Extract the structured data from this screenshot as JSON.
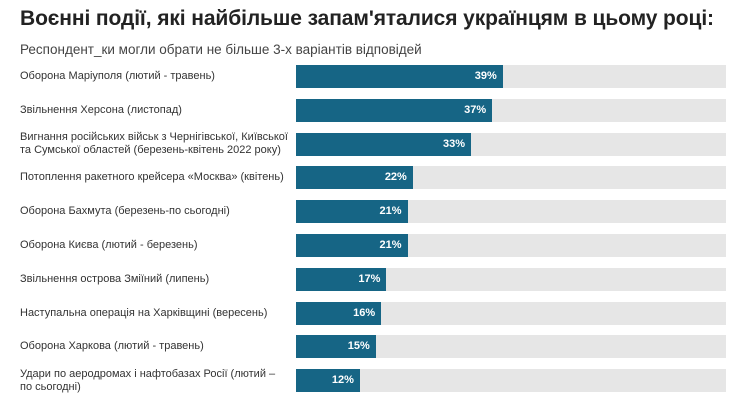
{
  "chart_data": {
    "type": "bar",
    "orientation": "horizontal",
    "title": "Воєнні події, які найбільше запам'яталися українцям в цьому році:",
    "subtitle": "Респондент_ки могли обрати не більше 3-х варіантів відповідей",
    "xlim": [
      0,
      100
    ],
    "value_suffix": "%",
    "categories": [
      "Оборона Маріуполя (лютий - травень)",
      "Звільнення Херсона (листопад)",
      "Вигнання російських військ з Чернігівської, Київської та Сумської областей (березень-квітень 2022 року)",
      "Потоплення ракетного крейсера «Москва» (квітень)",
      "Оборона Бахмута (березень-по сьогодні)",
      "Оборона Києва (лютий - березень)",
      "Звільнення острова Зміїний (липень)",
      "Наступальна операція на Харківщині (вересень)",
      "Оборона Харкова (лютий - травень)",
      "Удари по аеродромах і нафтобазах Росії (лютий – по сьогодні)"
    ],
    "values": [
      39,
      37,
      33,
      22,
      21,
      21,
      17,
      16,
      15,
      12
    ],
    "colors": {
      "bar": "#166585",
      "track": "#e6e6e6",
      "label": "#ffffff"
    }
  }
}
